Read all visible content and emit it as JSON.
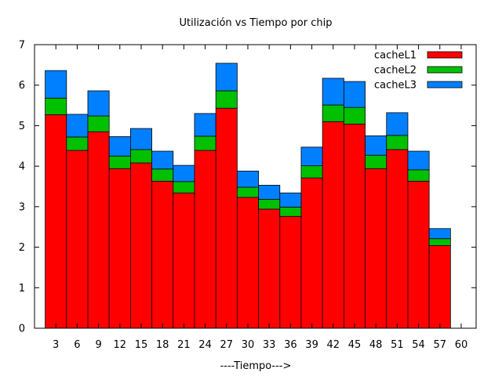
{
  "chart_data": {
    "type": "bar",
    "stacked": true,
    "title": "Utilización vs Tiempo por chip",
    "xlabel": "----Tiempo--->",
    "ylabel": "",
    "categories": [
      "3",
      "6",
      "9",
      "12",
      "15",
      "18",
      "21",
      "24",
      "27",
      "30",
      "33",
      "36",
      "39",
      "42",
      "45",
      "48",
      "51",
      "54",
      "57",
      "60"
    ],
    "ylim": [
      0,
      7
    ],
    "yticks": [
      "0",
      "1",
      "2",
      "3",
      "4",
      "5",
      "6",
      "7"
    ],
    "grid": false,
    "legend_position": "top-right",
    "series": [
      {
        "name": "cacheL1",
        "color": "#ff0000",
        "values": [
          5.27,
          4.39,
          4.85,
          3.94,
          4.08,
          3.63,
          3.34,
          4.39,
          5.43,
          3.23,
          2.94,
          2.76,
          3.71,
          5.1,
          5.04,
          3.94,
          4.41,
          3.63,
          2.04,
          0
        ]
      },
      {
        "name": "cacheL2",
        "color": "#00c000",
        "values": [
          0.41,
          0.33,
          0.39,
          0.31,
          0.33,
          0.3,
          0.28,
          0.35,
          0.43,
          0.25,
          0.24,
          0.23,
          0.3,
          0.41,
          0.41,
          0.33,
          0.35,
          0.28,
          0.17,
          0
        ]
      },
      {
        "name": "cacheL3",
        "color": "#0080ff",
        "values": [
          0.68,
          0.56,
          0.62,
          0.48,
          0.52,
          0.44,
          0.4,
          0.56,
          0.68,
          0.4,
          0.35,
          0.35,
          0.46,
          0.66,
          0.64,
          0.48,
          0.56,
          0.46,
          0.25,
          0
        ]
      }
    ]
  }
}
